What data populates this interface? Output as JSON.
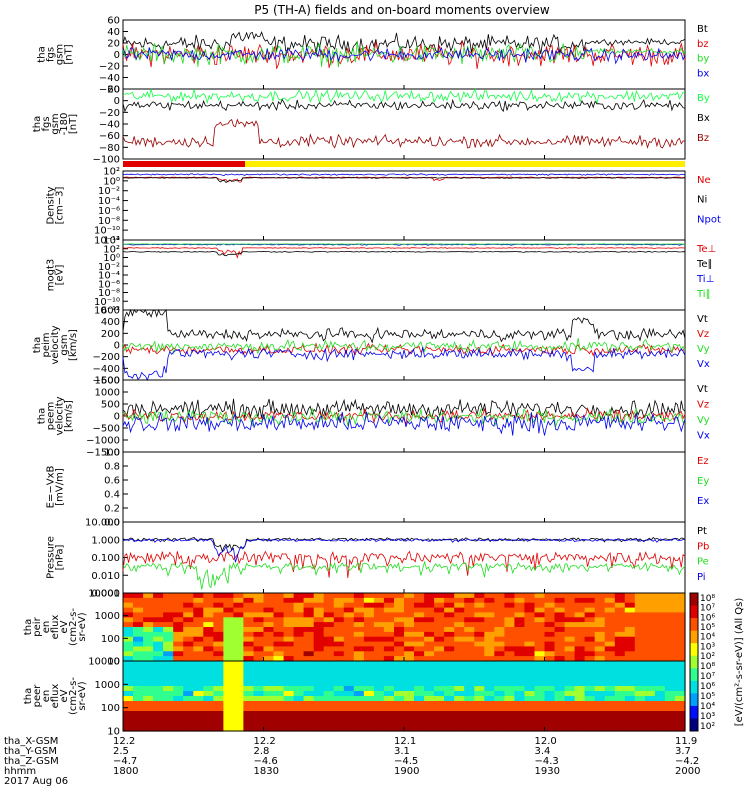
{
  "title": "P5 (TH-A) fields and on-board moments overview",
  "colors": {
    "black": "#000000",
    "red": "#e00000",
    "green": "#22dd22",
    "blue": "#0000ee",
    "darkred": "#990000",
    "yellow": "#ffee00",
    "brightgreen": "#11ff44"
  },
  "chart_data": {
    "type": "line",
    "time_ticks": [
      "1800",
      "1830",
      "1900",
      "1930",
      "2000"
    ],
    "panels": [
      {
        "id": "fgs",
        "ylabel": [
          "tha",
          "fgs",
          "gsm",
          "[nT]"
        ],
        "ylim": [
          -60,
          60
        ],
        "scale": "linear",
        "ticks": [
          "60",
          "40",
          "20",
          "0",
          "−20",
          "−40",
          "−60"
        ],
        "legend": [
          {
            "name": "Bt",
            "color": "#000000"
          },
          {
            "name": "bz",
            "color": "#e00000"
          },
          {
            "name": "by",
            "color": "#22dd22"
          },
          {
            "name": "bx",
            "color": "#0000ee"
          }
        ]
      },
      {
        "id": "fgs-nob",
        "ylabel": [
          "tha",
          "fgs",
          "gsm",
          "-180",
          "[nT]"
        ],
        "ylim": [
          -100,
          20
        ],
        "scale": "linear",
        "ticks": [
          "20",
          "0",
          "−20",
          "−40",
          "−60",
          "−80",
          "−100"
        ],
        "legend": [
          {
            "name": "By",
            "color": "#11ff44"
          },
          {
            "name": "Bx",
            "color": "#000000"
          },
          {
            "name": "Bz",
            "color": "#990000"
          }
        ]
      },
      {
        "id": "density",
        "ylabel": [
          "Density",
          "[cm−3]"
        ],
        "ylim": [
          1e-12,
          100
        ],
        "scale": "log",
        "ticks": [
          "10²",
          "10⁰",
          "10⁻²",
          "10⁻⁴",
          "10⁻⁶",
          "10⁻⁸",
          "10⁻¹⁰",
          "10⁻¹²"
        ],
        "legend": [
          {
            "name": "Ne",
            "color": "#e00000"
          },
          {
            "name": "Ni",
            "color": "#000000"
          },
          {
            "name": "Npot",
            "color": "#0000ee"
          }
        ]
      },
      {
        "id": "temp",
        "ylabel": [
          "mogt3",
          "[eV]"
        ],
        "ylim": [
          1e-12,
          10000
        ],
        "scale": "log",
        "ticks": [
          "10⁴",
          "10²",
          "10⁰",
          "10⁻²",
          "10⁻⁴",
          "10⁻⁶",
          "10⁻⁸",
          "10⁻¹⁰",
          "10⁻¹²"
        ],
        "legend": [
          {
            "name": "Te⊥",
            "color": "#e00000"
          },
          {
            "name": "Te∥",
            "color": "#000000"
          },
          {
            "name": "Ti⊥",
            "color": "#0000ee"
          },
          {
            "name": "Ti∥",
            "color": "#22dd22"
          }
        ]
      },
      {
        "id": "peim",
        "ylabel": [
          "tha",
          "peim",
          "velocity",
          "gsm",
          "[km/s]"
        ],
        "ylim": [
          -600,
          600
        ],
        "scale": "linear",
        "ticks": [
          "600",
          "400",
          "200",
          "0",
          "−200",
          "−400",
          "−600"
        ],
        "legend": [
          {
            "name": "Vt",
            "color": "#000000"
          },
          {
            "name": "Vz",
            "color": "#e00000"
          },
          {
            "name": "Vy",
            "color": "#22dd22"
          },
          {
            "name": "Vx",
            "color": "#0000ee"
          }
        ]
      },
      {
        "id": "peem",
        "ylabel": [
          "tha",
          "peem",
          "velocity",
          "[km/s]"
        ],
        "ylim": [
          -1500,
          1500
        ],
        "scale": "linear",
        "ticks": [
          "1500",
          "1000",
          "500",
          "0",
          "−500",
          "−1000",
          "−1500"
        ],
        "legend": [
          {
            "name": "Vt",
            "color": "#000000"
          },
          {
            "name": "Vz",
            "color": "#e00000"
          },
          {
            "name": "Vy",
            "color": "#22dd22"
          },
          {
            "name": "Vx",
            "color": "#0000ee"
          }
        ]
      },
      {
        "id": "efield",
        "ylabel": [
          "E=−VxB",
          "[mV/m]"
        ],
        "ylim": [
          0,
          1
        ],
        "scale": "linear",
        "ticks": [
          "1.0",
          "0.8",
          "0.6",
          "0.4",
          "0.2",
          "0.0"
        ],
        "legend": [
          {
            "name": "Ez",
            "color": "#e00000"
          },
          {
            "name": "Ey",
            "color": "#22dd22"
          },
          {
            "name": "Ex",
            "color": "#0000ee"
          }
        ]
      },
      {
        "id": "pressure",
        "ylabel": [
          "Pressure",
          "[nPa]"
        ],
        "ylim": [
          0.001,
          10
        ],
        "scale": "log",
        "ticks": [
          "10.000",
          "1.000",
          "0.100",
          "0.010",
          "0.001"
        ],
        "legend": [
          {
            "name": "Pt",
            "color": "#000000"
          },
          {
            "name": "Pb",
            "color": "#e00000"
          },
          {
            "name": "Pe",
            "color": "#22dd22"
          },
          {
            "name": "Pi",
            "color": "#0000ee"
          }
        ]
      },
      {
        "id": "peir",
        "ylabel": [
          "tha",
          "peir",
          "en",
          "eflux",
          "eV",
          "(cm2-s-",
          "sr-eV)"
        ],
        "ylim": [
          5,
          20000
        ],
        "scale": "log",
        "ticks": [
          "10000",
          "1000",
          "100",
          "10"
        ]
      },
      {
        "id": "peer",
        "ylabel": [
          "tha",
          "peer",
          "en",
          "eflux",
          "eV",
          "(cm2-s-",
          "sr-eV)"
        ],
        "ylim": [
          5,
          20000
        ],
        "scale": "log",
        "ticks": [
          "10000",
          "1000",
          "100",
          "10"
        ]
      }
    ],
    "colorbar": {
      "label": "[eV/(cm²-s-sr-eV)]  (All Qs)",
      "ticks": [
        "10⁸",
        "10⁷",
        "10⁶",
        "10⁵",
        "10⁴",
        "10³",
        "10²"
      ]
    },
    "spectrogram_colorbar": {
      "ticks": [
        "10⁸",
        "10⁷",
        "10⁶",
        "10⁵",
        "10⁴",
        "10³",
        "10²"
      ]
    }
  },
  "bottom_axis": {
    "rows": [
      {
        "label": "tha_X-GSM",
        "values": [
          "12.2",
          "12.2",
          "12.1",
          "12.0",
          "11.9"
        ]
      },
      {
        "label": "tha_Y-GSM",
        "values": [
          "2.5",
          "2.8",
          "3.1",
          "3.4",
          "3.7"
        ]
      },
      {
        "label": "tha_Z-GSM",
        "values": [
          "−4.7",
          "−4.6",
          "−4.5",
          "−4.3",
          "−4.2"
        ]
      },
      {
        "label": "hhmm",
        "values": [
          "1800",
          "1830",
          "1900",
          "1930",
          "2000"
        ]
      }
    ],
    "date": "2017 Aug 06"
  }
}
